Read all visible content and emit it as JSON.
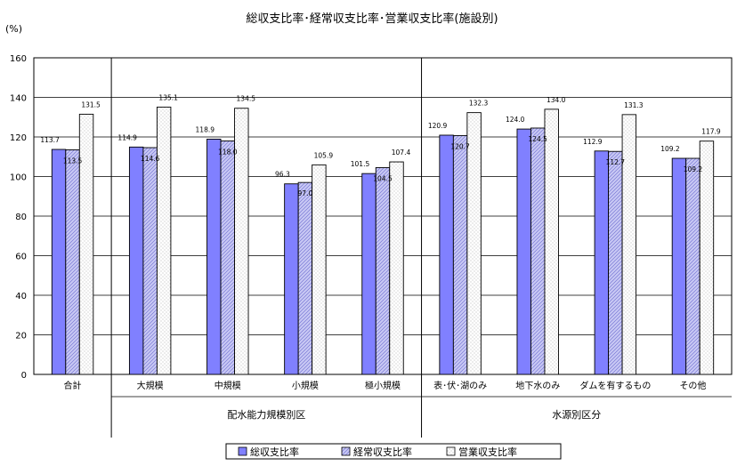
{
  "chart_data": {
    "type": "bar",
    "title": "総収支比率･経常収支比率･営業収支比率(施設別)",
    "y_unit": "(%)",
    "ylim": [
      0,
      160
    ],
    "yticks": [
      "0",
      "20",
      "40",
      "60",
      "80",
      "100",
      "120",
      "140",
      "160"
    ],
    "categories": [
      "合計",
      "大規模",
      "中規模",
      "小規模",
      "極小規模",
      "表･伏･湖のみ",
      "地下水のみ",
      "ダムを有するもの",
      "その他"
    ],
    "groups": [
      {
        "label": "配水能力規模別区",
        "start": 1,
        "end": 4
      },
      {
        "label": "水源別区分",
        "start": 5,
        "end": 8
      }
    ],
    "series": [
      {
        "name": "総収支比率",
        "color": "#8080ff",
        "pattern": "solid",
        "values": [
          113.7,
          114.9,
          118.9,
          96.3,
          101.5,
          120.9,
          124.0,
          112.9,
          109.2
        ],
        "labels": [
          "113.7",
          "114.9",
          "118.9",
          "96.3",
          "101.5",
          "120.9",
          "124.0",
          "112.9",
          "109.2"
        ]
      },
      {
        "name": "経常収支比率",
        "color": "#b8b8f0",
        "pattern": "hatch",
        "values": [
          113.5,
          114.6,
          118.0,
          97.0,
          104.5,
          120.7,
          124.5,
          112.7,
          109.2
        ],
        "labels": [
          "113.5",
          "114.6",
          "118.0",
          "97.0",
          "104.5",
          "120.7",
          "124.5",
          "112.7",
          "109.2"
        ]
      },
      {
        "name": "営業収支比率",
        "color": "#ffffff",
        "pattern": "dots",
        "values": [
          131.5,
          135.1,
          134.5,
          105.9,
          107.4,
          132.3,
          134.0,
          131.3,
          117.9
        ],
        "labels": [
          "131.5",
          "135.1",
          "134.5",
          "105.9",
          "107.4",
          "132.3",
          "134.0",
          "131.3",
          "117.9"
        ]
      }
    ],
    "grid": true,
    "legend": "bottom-center"
  }
}
